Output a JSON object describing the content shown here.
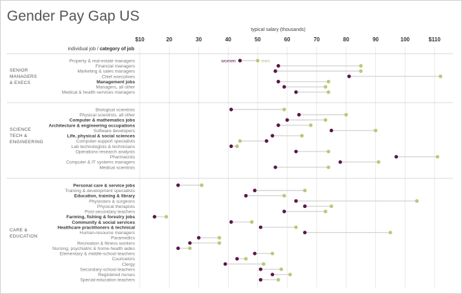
{
  "chart_data": {
    "type": "dot",
    "title": "Gender Pay Gap US",
    "xlabel": "typical salary (thousands)",
    "ylabel_job": "individual job",
    "ylabel_sep": " / ",
    "ylabel_category": "category of job",
    "xlim": [
      10,
      113
    ],
    "ticks": [
      "$10",
      "20",
      "30",
      "40",
      "50",
      "60",
      "70",
      "80",
      "90",
      "100",
      "$110"
    ],
    "tick_values": [
      10,
      20,
      30,
      40,
      50,
      60,
      70,
      80,
      90,
      100,
      110
    ],
    "colors": {
      "women": "#5a1746",
      "men": "#b6c97a",
      "line": "#d6d6d6",
      "text": "#7a7a7a",
      "bold": "#3a3a3a"
    },
    "legend": {
      "women": "women",
      "men": "men"
    },
    "groups": [
      {
        "label": [
          "SENIOR",
          "MANAGERS",
          "& EXECS"
        ],
        "rows": [
          {
            "name": "Property & real-estate managers",
            "women": 44,
            "men": 50,
            "bold": false
          },
          {
            "name": "Financial managers",
            "women": 57,
            "men": 85,
            "bold": false
          },
          {
            "name": "Marketing & sales managers",
            "women": 56,
            "men": 85,
            "bold": false
          },
          {
            "name": "Chief executives",
            "women": 81,
            "men": 112,
            "bold": false
          },
          {
            "name": "Management jobs",
            "women": 57,
            "men": 74,
            "bold": true
          },
          {
            "name": "Managers, all other",
            "women": 59,
            "men": 73,
            "bold": false
          },
          {
            "name": "Medical & health-services managers",
            "women": 63,
            "men": 74,
            "bold": false
          }
        ]
      },
      {
        "label": [
          "SCIENCE",
          "TECH &",
          "ENGINEERING"
        ],
        "rows": [
          {
            "name": "Biological scientists",
            "women": 41,
            "men": 59,
            "bold": false
          },
          {
            "name": "Physical scientists, all other",
            "women": 64,
            "men": 80,
            "bold": false
          },
          {
            "name": "Computer & mathematics jobs",
            "women": 60,
            "men": 73,
            "bold": true
          },
          {
            "name": "Architecture & engineering occupations",
            "women": 57,
            "men": 68,
            "bold": true
          },
          {
            "name": "Software developers",
            "women": 75,
            "men": 90,
            "bold": false
          },
          {
            "name": "Life, physical & social sciences",
            "women": 55,
            "men": 65,
            "bold": true
          },
          {
            "name": "Computer-support specialists",
            "women": 53,
            "men": 44,
            "bold": false
          },
          {
            "name": "Lab technologists & technicians",
            "women": 41,
            "men": 43,
            "bold": false
          },
          {
            "name": "Operations-research analysts",
            "women": 63,
            "men": 74,
            "bold": false
          },
          {
            "name": "Pharmacists",
            "women": 97,
            "men": 111,
            "bold": false
          },
          {
            "name": "Computer & IT systems managers",
            "women": 78,
            "men": 91,
            "bold": false
          },
          {
            "name": "Medical scientists",
            "women": 56,
            "men": 74,
            "bold": false
          }
        ]
      },
      {
        "label": [
          "CARE &",
          "EDUCATION"
        ],
        "rows": [
          {
            "name": "Personal care & service jobs",
            "women": 23,
            "men": 31,
            "bold": true
          },
          {
            "name": "Training & development specialists",
            "women": 49,
            "men": 66,
            "bold": false
          },
          {
            "name": "Education, training & library",
            "women": 46,
            "men": 59,
            "bold": true
          },
          {
            "name": "Physicians & surgeons",
            "women": 63,
            "men": 104,
            "bold": false
          },
          {
            "name": "Physical therapists",
            "women": 66,
            "men": 75,
            "bold": false
          },
          {
            "name": "Post-secondary teachers",
            "women": 59,
            "men": 73,
            "bold": false
          },
          {
            "name": "Farming, fishing & forestry jobs",
            "women": 15,
            "men": 19,
            "bold": true
          },
          {
            "name": "Community & social services",
            "women": 41,
            "men": 48,
            "bold": true
          },
          {
            "name": "Healthcare practitioners & technical",
            "women": 51,
            "men": 63,
            "bold": true
          },
          {
            "name": "Human-resource managers",
            "women": 66,
            "men": 95,
            "bold": false
          },
          {
            "name": "Paramedics",
            "women": 30,
            "men": 37,
            "bold": false
          },
          {
            "name": "Recreation & fitness workers",
            "women": 27,
            "men": 37,
            "bold": false
          },
          {
            "name": "Nursing, psychiatric & home-health aides",
            "women": 23,
            "men": 27,
            "bold": false
          },
          {
            "name": "Elementary & middle-school teachers",
            "women": 49,
            "men": 55,
            "bold": false
          },
          {
            "name": "Counselors",
            "women": 43,
            "men": 46,
            "bold": false
          },
          {
            "name": "Clergy",
            "women": 39,
            "men": 52,
            "bold": false
          },
          {
            "name": "Secondary-school teachers",
            "women": 51,
            "men": 58,
            "bold": false
          },
          {
            "name": "Registered nurses",
            "women": 55,
            "men": 61,
            "bold": false
          },
          {
            "name": "Special-education teachers",
            "women": 51,
            "men": 57,
            "bold": false
          }
        ]
      }
    ]
  }
}
